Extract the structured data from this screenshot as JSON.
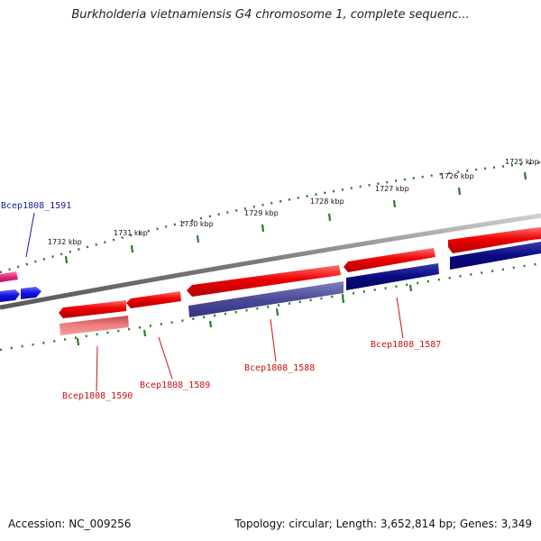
{
  "header": {
    "title": "Burkholderia vietnamiensis G4 chromosome 1, complete sequenc..."
  },
  "footer": {
    "accession": "Accession: NC_009256",
    "topology": "Topology: circular; Length: 3,652,814 bp; Genes: 3,349"
  },
  "scale_ticks": [
    {
      "label": "1725 kbp"
    },
    {
      "label": "1726 kbp"
    },
    {
      "label": "1727 kbp"
    },
    {
      "label": "1728 kbp"
    },
    {
      "label": "1729 kbp"
    },
    {
      "label": "1730 kbp"
    },
    {
      "label": "1731 kbp"
    },
    {
      "label": "1732 kbp"
    }
  ],
  "gene_labels": [
    {
      "name": "Bcep1808_1591",
      "color": "#1a1aa0"
    },
    {
      "name": "Bcep1808_1590",
      "color": "#cc1111"
    },
    {
      "name": "Bcep1808_1589",
      "color": "#cc1111"
    },
    {
      "name": "Bcep1808_1588",
      "color": "#cc1111"
    },
    {
      "name": "Bcep1808_1587",
      "color": "#cc1111"
    }
  ],
  "colors": {
    "backbone": "#888888",
    "forward_gene": "#e81010",
    "reverse_gene": "#0a0a80",
    "rna_pink": "#e8287a",
    "blue_gene": "#1010e0",
    "scale": "#2a7a2a"
  }
}
